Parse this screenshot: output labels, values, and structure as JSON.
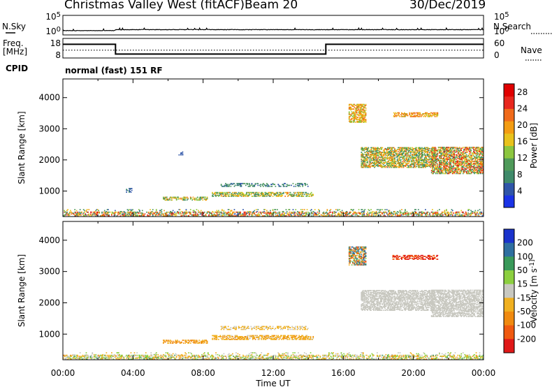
{
  "header": {
    "station": "Christmas Valley West (fitACF)",
    "beam": "Beam 20",
    "date": "30/Dec/2019"
  },
  "colors": {
    "power_scale": [
      "#1a33e6",
      "#2f55a8",
      "#3f8a6a",
      "#4f9a5a",
      "#8cc63f",
      "#e8c21c",
      "#f39c12",
      "#f06a1a",
      "#e8271e",
      "#e00000"
    ],
    "velocity_scale": [
      "#1a33cc",
      "#2f6fa0",
      "#3a9a5a",
      "#8ccf3f",
      "#c8c8c0",
      "#f0b020",
      "#f08a10",
      "#f05a10",
      "#e01818"
    ],
    "background": "#ffffff"
  },
  "chart_data": [
    {
      "type": "line",
      "name": "noise",
      "left_label": "N.Sky",
      "right_label": "N.Search",
      "left_ticks": [
        "10^5",
        "10^0"
      ],
      "right_ticks": [
        "10^5",
        "10^0"
      ],
      "series": [
        {
          "values": [
            [
              0,
              1.1
            ],
            [
              3,
              1.15
            ],
            [
              3.01,
              1.35
            ],
            [
              24,
              1.35
            ]
          ]
        }
      ]
    },
    {
      "type": "line",
      "name": "frequency",
      "left_label": "Freq.",
      "left_unit": "[MHz]",
      "right_label": "Nave",
      "left_ticks": [
        "18",
        "8"
      ],
      "right_ticks": [
        "60",
        "0"
      ],
      "series": [
        {
          "values": [
            [
              0,
              15
            ],
            [
              3,
              15
            ],
            [
              3,
              10
            ],
            [
              15,
              10
            ],
            [
              15,
              15
            ],
            [
              24,
              15
            ]
          ]
        },
        {
          "values": [
            [
              0,
              12
            ],
            [
              24,
              12
            ]
          ],
          "style": "dotted"
        }
      ]
    },
    {
      "type": "table",
      "name": "cpid",
      "label": "CPID",
      "value": "normal (fast) 151 RF"
    },
    {
      "type": "heatmap",
      "name": "power",
      "ylabel": "Slant Range [km]",
      "ylim": [
        180,
        4600
      ],
      "yticks": [
        1000,
        2000,
        3000,
        4000
      ],
      "colorbar_label": "Power [dB]",
      "colorbar_ticks": [
        4,
        8,
        12,
        16,
        20,
        24,
        28
      ],
      "colorbar_range": [
        0,
        30
      ],
      "regions": [
        {
          "t": [
            0,
            24
          ],
          "r": [
            190,
            330
          ],
          "v": [
            4,
            28
          ],
          "d": 0.45
        },
        {
          "t": [
            0,
            24
          ],
          "r": [
            330,
            420
          ],
          "v": [
            4,
            20
          ],
          "d": 0.12
        },
        {
          "t": [
            5.7,
            8.2
          ],
          "r": [
            700,
            800
          ],
          "v": [
            8,
            22
          ],
          "d": 0.5
        },
        {
          "t": [
            8.5,
            14.3
          ],
          "r": [
            820,
            950
          ],
          "v": [
            6,
            22
          ],
          "d": 0.55
        },
        {
          "t": [
            9.0,
            14.0
          ],
          "r": [
            1140,
            1260
          ],
          "v": [
            4,
            10
          ],
          "d": 0.35
        },
        {
          "t": [
            3.6,
            3.9
          ],
          "r": [
            950,
            1100
          ],
          "v": [
            4,
            8
          ],
          "d": 0.4
        },
        {
          "t": [
            16.3,
            17.3
          ],
          "r": [
            3200,
            3800
          ],
          "v": [
            12,
            24
          ],
          "d": 0.6
        },
        {
          "t": [
            18.8,
            21.4
          ],
          "r": [
            3380,
            3520
          ],
          "v": [
            14,
            24
          ],
          "d": 0.55
        },
        {
          "t": [
            17.0,
            21.2
          ],
          "r": [
            1750,
            2400
          ],
          "v": [
            6,
            24
          ],
          "d": 0.6
        },
        {
          "t": [
            21.0,
            24.0
          ],
          "r": [
            1550,
            2400
          ],
          "v": [
            6,
            28
          ],
          "d": 0.6
        },
        {
          "t": [
            6.5,
            6.8
          ],
          "r": [
            2150,
            2250
          ],
          "v": [
            4,
            6
          ],
          "d": 0.3
        }
      ]
    },
    {
      "type": "heatmap",
      "name": "velocity",
      "ylabel": "Slant Range [km]",
      "xlabel": "Time UT",
      "xticks": [
        "00:00",
        "04:00",
        "08:00",
        "12:00",
        "16:00",
        "20:00",
        "00:00"
      ],
      "xlim": [
        0,
        24
      ],
      "ylim": [
        180,
        4600
      ],
      "yticks": [
        1000,
        2000,
        3000,
        4000
      ],
      "colorbar_label": "Velocity [m s^-1]",
      "colorbar_ticks": [
        200,
        100,
        50,
        15,
        -15,
        -50,
        -100,
        -200
      ],
      "regions": [
        {
          "t": [
            0,
            24
          ],
          "r": [
            190,
            330
          ],
          "v": [
            -60,
            60
          ],
          "d": 0.45
        },
        {
          "t": [
            0,
            24
          ],
          "r": [
            330,
            420
          ],
          "v": [
            -40,
            40
          ],
          "d": 0.12
        },
        {
          "t": [
            5.7,
            8.2
          ],
          "r": [
            700,
            800
          ],
          "v": [
            -80,
            -20
          ],
          "d": 0.5
        },
        {
          "t": [
            8.5,
            14.3
          ],
          "r": [
            820,
            950
          ],
          "v": [
            -60,
            -10
          ],
          "d": 0.55
        },
        {
          "t": [
            9.0,
            14.0
          ],
          "r": [
            1140,
            1260
          ],
          "v": [
            -30,
            -10
          ],
          "d": 0.35
        },
        {
          "t": [
            16.3,
            17.3
          ],
          "r": [
            3200,
            3800
          ],
          "v": [
            -200,
            200
          ],
          "d": 0.6
        },
        {
          "t": [
            18.8,
            21.4
          ],
          "r": [
            3380,
            3520
          ],
          "v": [
            -250,
            -150
          ],
          "d": 0.55
        },
        {
          "t": [
            17.0,
            21.2
          ],
          "r": [
            1750,
            2400
          ],
          "v": [
            -15,
            15
          ],
          "d": 0.6
        },
        {
          "t": [
            21.0,
            24.0
          ],
          "r": [
            1550,
            2400
          ],
          "v": [
            -15,
            15
          ],
          "d": 0.6
        }
      ]
    }
  ]
}
